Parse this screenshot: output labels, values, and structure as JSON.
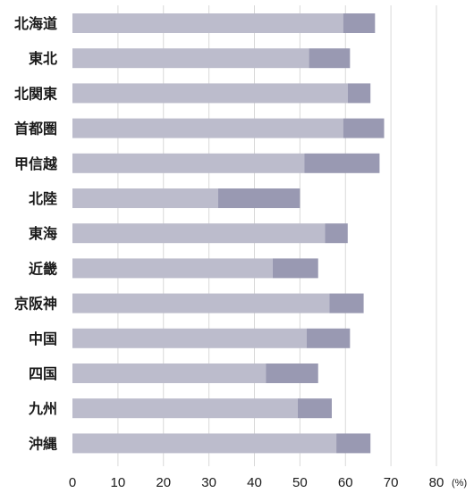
{
  "chart_data": {
    "type": "bar",
    "orientation": "horizontal",
    "stacked": true,
    "categories": [
      "北海道",
      "東北",
      "北関東",
      "首都圏",
      "甲信越",
      "北陸",
      "東海",
      "近畿",
      "京阪神",
      "中国",
      "四国",
      "九州",
      "沖縄"
    ],
    "series": [
      {
        "values": [
          59.5,
          52.0,
          60.5,
          59.5,
          51.0,
          32.0,
          55.5,
          44.0,
          56.5,
          51.5,
          42.5,
          49.5,
          58.0
        ],
        "color": "#bcbccc"
      },
      {
        "values": [
          7.0,
          9.0,
          5.0,
          9.0,
          16.5,
          18.0,
          5.0,
          10.0,
          7.5,
          9.5,
          11.5,
          7.5,
          7.5
        ],
        "color": "#9999b2"
      }
    ],
    "x_ticks": [
      "0",
      "10",
      "20",
      "30",
      "40",
      "50",
      "60",
      "70",
      "80"
    ],
    "x_unit": "(%)",
    "xlim": [
      0,
      80
    ],
    "grid": true,
    "legend": "none"
  }
}
